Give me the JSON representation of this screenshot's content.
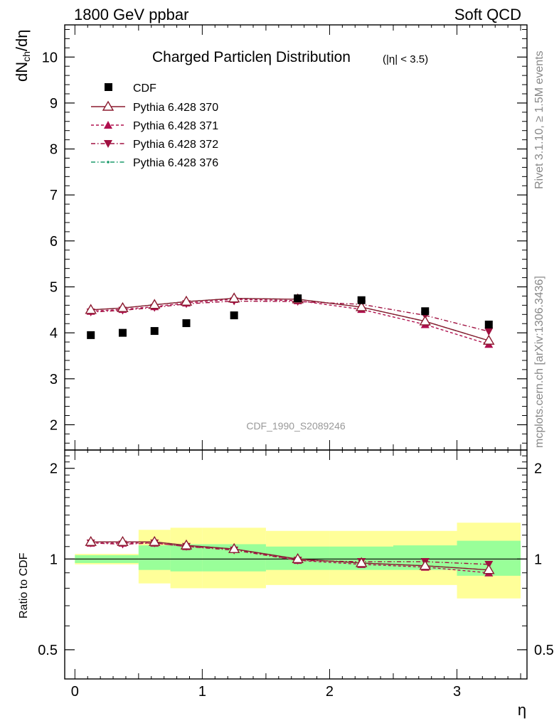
{
  "header": {
    "left": "1800 GeV ppbar",
    "right": "Soft QCD"
  },
  "side_labels": {
    "rivet": "Rivet 3.1.10, ≥ 1.5M events",
    "mcplots": "mcplots.cern.ch [arXiv:1306.3436]"
  },
  "watermark": "CDF_1990_S2089246",
  "colors": {
    "data": "#000000",
    "p370": "#8b1a2f",
    "p371": "#b0104f",
    "p372": "#a01040",
    "p376": "#1a9a6a",
    "band_inner": "#99ff99",
    "band_outer": "#ffff99"
  },
  "chart_data": [
    {
      "type": "scatter",
      "title": "Charged Particleη Distribution",
      "title_suffix": "(|η| < 3.5)",
      "ylabel": "dNₙₕ/dη",
      "ylabel_main": "dN",
      "ylabel_sub": "ch",
      "ylabel_tail": "/dη",
      "xlim": [
        -0.08,
        3.55
      ],
      "ylim": [
        1.45,
        10.7
      ],
      "yticks": [
        2,
        3,
        4,
        5,
        6,
        7,
        8,
        9,
        10
      ],
      "ytick_labels": [
        "2",
        "3",
        "4",
        "5",
        "6",
        "7",
        "8",
        "9",
        "10"
      ],
      "legend": "top-left",
      "series": [
        {
          "name": "CDF",
          "marker": "square",
          "x": [
            0.125,
            0.375,
            0.625,
            0.875,
            1.25,
            1.75,
            2.25,
            2.75,
            3.25
          ],
          "y": [
            3.95,
            4.0,
            4.04,
            4.21,
            4.38,
            4.75,
            4.71,
            4.47,
            4.18
          ]
        },
        {
          "name": "Pythia 6.428 370",
          "marker": "triangle-up-open",
          "line": "solid",
          "x": [
            0.125,
            0.375,
            0.625,
            0.875,
            1.25,
            1.75,
            2.25,
            2.75,
            3.25
          ],
          "y": [
            4.5,
            4.54,
            4.61,
            4.68,
            4.75,
            4.73,
            4.56,
            4.25,
            3.83
          ]
        },
        {
          "name": "Pythia 6.428 371",
          "marker": "triangle-up",
          "line": "dashed",
          "x": [
            0.125,
            0.375,
            0.625,
            0.875,
            1.25,
            1.75,
            2.25,
            2.75,
            3.25
          ],
          "y": [
            4.47,
            4.51,
            4.57,
            4.65,
            4.73,
            4.7,
            4.51,
            4.18,
            3.75
          ]
        },
        {
          "name": "Pythia 6.428 372",
          "marker": "triangle-down",
          "line": "dashdot",
          "x": [
            0.125,
            0.375,
            0.625,
            0.875,
            1.25,
            1.75,
            2.25,
            2.75,
            3.25
          ],
          "y": [
            4.45,
            4.49,
            4.55,
            4.63,
            4.69,
            4.68,
            4.62,
            4.38,
            4.03
          ]
        },
        {
          "name": "Pythia 6.428 376",
          "marker": "dot",
          "line": "dashdot",
          "x": [
            0.125,
            0.375,
            0.625,
            0.875,
            1.25,
            1.75,
            2.25,
            2.75,
            3.25
          ],
          "y": [
            4.5,
            4.54,
            4.61,
            4.68,
            4.75,
            4.73,
            4.56,
            4.25,
            3.83
          ]
        }
      ]
    },
    {
      "type": "line",
      "ylabel": "Ratio to CDF",
      "xlabel": "η",
      "xlim": [
        -0.08,
        3.55
      ],
      "ylim": [
        0.4,
        2.3
      ],
      "log_y": true,
      "xticks": [
        0,
        1,
        2,
        3
      ],
      "xtick_labels": [
        "0",
        "1",
        "2",
        "3"
      ],
      "yticks": [
        0.5,
        1,
        2
      ],
      "ytick_labels": [
        "0.5",
        "1",
        "2"
      ],
      "bands": {
        "edges": [
          0,
          0.5,
          0.75,
          1.0,
          1.5,
          2.0,
          2.5,
          3.0,
          3.5
        ],
        "inner_low": [
          0.97,
          0.92,
          0.91,
          0.91,
          0.92,
          0.92,
          0.92,
          0.88,
          0.88
        ],
        "inner_high": [
          1.03,
          1.11,
          1.12,
          1.12,
          1.1,
          1.1,
          1.11,
          1.15,
          1.15
        ],
        "outer_low": [
          0.96,
          0.83,
          0.8,
          0.8,
          0.82,
          0.82,
          0.82,
          0.74,
          0.74
        ],
        "outer_high": [
          1.04,
          1.25,
          1.27,
          1.27,
          1.24,
          1.24,
          1.24,
          1.32,
          1.32
        ]
      },
      "series": [
        {
          "name": "Pythia 6.428 370",
          "x": [
            0.125,
            0.375,
            0.625,
            0.875,
            1.25,
            1.75,
            2.25,
            2.75,
            3.25
          ],
          "y": [
            1.14,
            1.14,
            1.14,
            1.11,
            1.08,
            1.0,
            0.97,
            0.95,
            0.92
          ]
        },
        {
          "name": "Pythia 6.428 371",
          "x": [
            0.125,
            0.375,
            0.625,
            0.875,
            1.25,
            1.75,
            2.25,
            2.75,
            3.25
          ],
          "y": [
            1.13,
            1.13,
            1.13,
            1.1,
            1.08,
            0.99,
            0.96,
            0.94,
            0.9
          ]
        },
        {
          "name": "Pythia 6.428 372",
          "x": [
            0.125,
            0.375,
            0.625,
            0.875,
            1.25,
            1.75,
            2.25,
            2.75,
            3.25
          ],
          "y": [
            1.13,
            1.12,
            1.13,
            1.1,
            1.07,
            0.99,
            0.98,
            0.98,
            0.96
          ]
        },
        {
          "name": "Pythia 6.428 376",
          "x": [
            0.125,
            0.375,
            0.625,
            0.875,
            1.25,
            1.75,
            2.25,
            2.75,
            3.25
          ],
          "y": [
            1.14,
            1.14,
            1.14,
            1.11,
            1.08,
            1.0,
            0.97,
            0.95,
            0.92
          ]
        }
      ]
    }
  ]
}
